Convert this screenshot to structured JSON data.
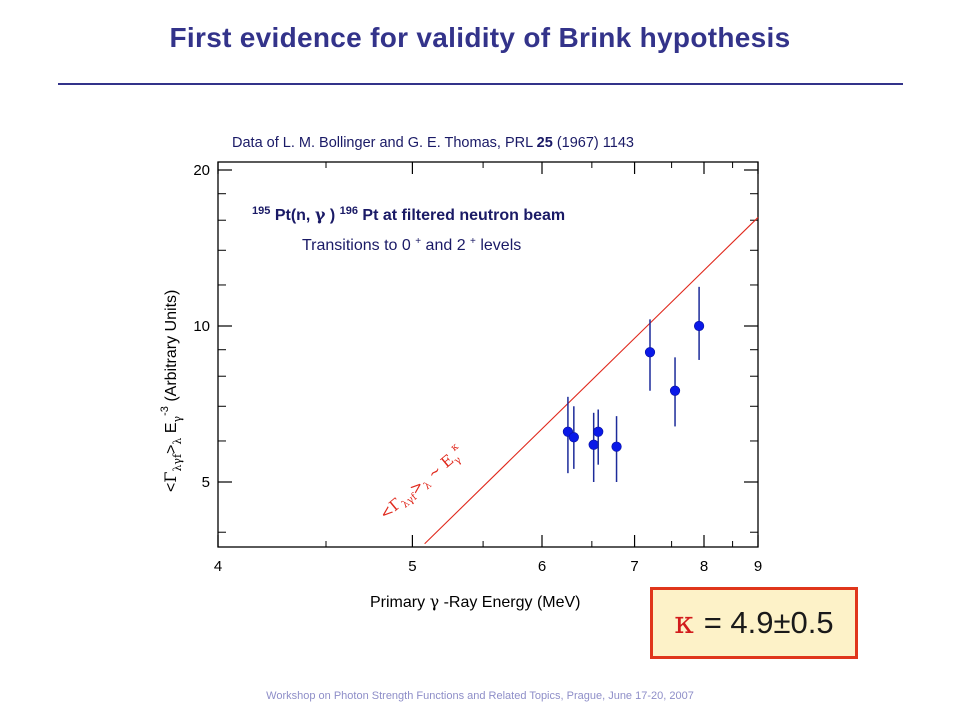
{
  "slide": {
    "title": "First evidence for validity of Brink hypothesis",
    "citation_prefix": "Data of L. M. Bollinger and G. E. Thomas, PRL ",
    "citation_volume": "25",
    "citation_suffix": " (1967) 1143",
    "footer": "Workshop on Photon Strength Functions and Related Topics, Prague, June 17-20, 2007"
  },
  "kappa_box": {
    "symbol": "κ",
    "text": "= 4.9±0.5"
  },
  "annotations": {
    "reaction_mass_in": "195",
    "reaction_mid": "Pt(n,",
    "reaction_gamma": "γ",
    "reaction_close": ")",
    "reaction_mass_out": "196",
    "reaction_tail": "Pt at filtered neutron beam",
    "transitions_prefix": "Transitions to 0",
    "transitions_sup1": "+",
    "transitions_mid": " and 2",
    "transitions_sup2": "+",
    "transitions_suffix": " levels",
    "fit_label": "<Γλγf>λ ~ Eγ^κ"
  },
  "chart_data": {
    "type": "scatter",
    "xlabel": "Primary γ -Ray Energy (MeV)",
    "ylabel": "<Γλγf>λ Eγ^-3 (Arbitrary Units)",
    "x_scale": "reciprocal",
    "y_scale": "log",
    "xlim": [
      4,
      9
    ],
    "ylim": [
      3.8,
      20
    ],
    "x_ticks": [
      4,
      5,
      6,
      7,
      8,
      9
    ],
    "y_ticks": [
      5,
      10,
      20
    ],
    "grid": false,
    "points": [
      {
        "x": 6.25,
        "y": 6.25,
        "yerr_low": 5.2,
        "yerr_high": 7.3
      },
      {
        "x": 6.31,
        "y": 6.1,
        "yerr_low": 5.3,
        "yerr_high": 7.0
      },
      {
        "x": 6.52,
        "y": 5.9,
        "yerr_low": 5.0,
        "yerr_high": 6.8
      },
      {
        "x": 6.57,
        "y": 6.25,
        "yerr_low": 5.4,
        "yerr_high": 6.9
      },
      {
        "x": 6.78,
        "y": 5.85,
        "yerr_low": 5.0,
        "yerr_high": 6.7
      },
      {
        "x": 7.2,
        "y": 8.9,
        "yerr_low": 7.5,
        "yerr_high": 10.3
      },
      {
        "x": 7.55,
        "y": 7.5,
        "yerr_low": 6.4,
        "yerr_high": 8.7
      },
      {
        "x": 7.92,
        "y": 10.0,
        "yerr_low": 8.6,
        "yerr_high": 11.9
      }
    ],
    "fit_line": {
      "x": [
        5.08,
        9.0
      ],
      "y": [
        3.8,
        16.2
      ]
    },
    "colors": {
      "points": "#0a19e8",
      "error_bars": "#1c2b9a",
      "fit_line": "#e0281c",
      "frame": "#000000"
    }
  }
}
